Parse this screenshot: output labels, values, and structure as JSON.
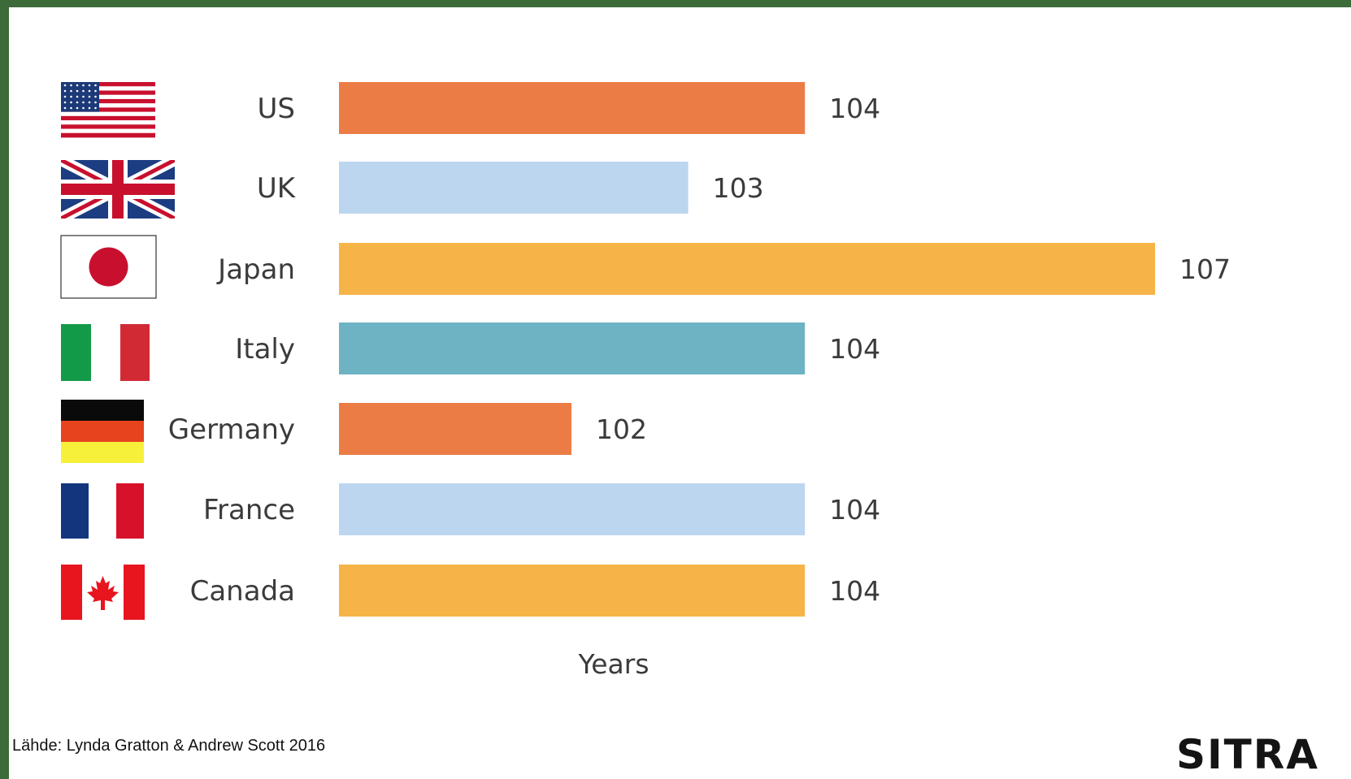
{
  "chart_data": {
    "type": "bar",
    "orientation": "horizontal",
    "categories": [
      "US",
      "UK",
      "Japan",
      "Italy",
      "Germany",
      "France",
      "Canada"
    ],
    "values": [
      104,
      103,
      107,
      104,
      102,
      104,
      104
    ],
    "value_labels": [
      "104",
      "103",
      "107",
      "104",
      "102",
      "104",
      "104"
    ],
    "bar_colors": [
      "#ec7c45",
      "#bcd6ef",
      "#f6b448",
      "#6db3c4",
      "#ec7c45",
      "#bcd6ef",
      "#f6b448"
    ],
    "flags": [
      "us-flag-icon",
      "uk-flag-icon",
      "japan-flag-icon",
      "italy-flag-icon",
      "germany-flag-icon",
      "france-flag-icon",
      "canada-flag-icon"
    ],
    "xlabel": "Years",
    "ylabel": "",
    "grid": false,
    "legend": "none"
  },
  "footer": {
    "source": "Lähde: Lynda Gratton & Andrew Scott 2016",
    "logo": "SITRA"
  },
  "colors": {
    "frame": "#3c6a38",
    "background": "#ffffff",
    "text": "#3b3b3b"
  }
}
